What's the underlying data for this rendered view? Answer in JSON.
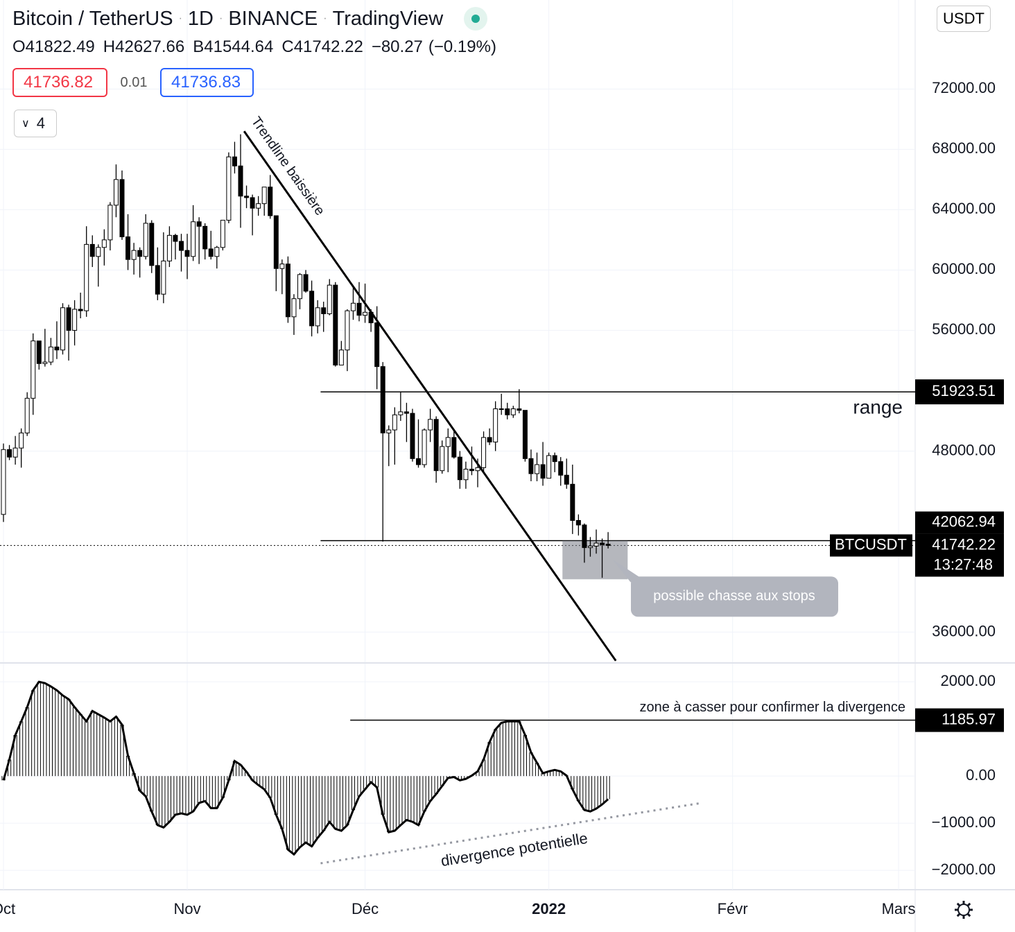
{
  "header": {
    "symbol": "Bitcoin / TetherUS",
    "interval": "1D",
    "exchange": "BINANCE",
    "source": "TradingView",
    "ohlc_labels": [
      "O",
      "H",
      "B",
      "C"
    ],
    "change": "−80.27",
    "change_pct": "(−0.19%)",
    "sell": 41736.82,
    "spread": 0.01,
    "buy": 41736.83,
    "indicators_count": 4,
    "currency": "USDT"
  },
  "chart_data": [
    {
      "type": "candlestick",
      "up_color": "#ffffff",
      "down_color": "#000000",
      "grid": true,
      "x": [
        0,
        1,
        2,
        3,
        4,
        5,
        6,
        7,
        8,
        9,
        10,
        11,
        12,
        13,
        14,
        15,
        16,
        17,
        18,
        19,
        20,
        21,
        22,
        23,
        24,
        25,
        26,
        27,
        28,
        29,
        30,
        31,
        32,
        33,
        34,
        35,
        36,
        37,
        38,
        39,
        40,
        41,
        42,
        43,
        44,
        45,
        46,
        47,
        48,
        49,
        50,
        51,
        52,
        53,
        54,
        55,
        56,
        57,
        58,
        59,
        60,
        61,
        62,
        63,
        64,
        65,
        66,
        67,
        68,
        69,
        70,
        71,
        72,
        73,
        74,
        75,
        76,
        77,
        78,
        79,
        80,
        81,
        82,
        83,
        84,
        85,
        86,
        87,
        88,
        89,
        90,
        91,
        92,
        93,
        94,
        95,
        96,
        97,
        98,
        99,
        100,
        101,
        102
      ],
      "open": [
        43800,
        48100,
        47600,
        48200,
        49200,
        51500,
        55300,
        53800,
        53900,
        54900,
        54700,
        57500,
        56000,
        57400,
        57300,
        61700,
        60900,
        61500,
        62000,
        64300,
        66000,
        62200,
        60700,
        61300,
        60900,
        63100,
        60300,
        58400,
        60600,
        62300,
        61900,
        61300,
        60900,
        63200,
        62900,
        61400,
        60900,
        61500,
        63300,
        67500,
        66900,
        64900,
        64800,
        64100,
        64400,
        65500,
        63600,
        60100,
        60400,
        56900,
        58100,
        59700,
        58600,
        56300,
        57500,
        57100,
        59000,
        53700,
        54700,
        57300,
        57800,
        57000,
        57200,
        56500,
        53600,
        49200,
        49400,
        50400,
        50600,
        50500,
        47500,
        47100,
        49400,
        50100,
        46700,
        48300,
        48900,
        47600,
        46100,
        46800,
        46700,
        46900,
        48900,
        48600,
        50800,
        50800,
        50400,
        50800,
        50700,
        47500,
        46500,
        47100,
        46200,
        47700,
        47300,
        46400,
        45800,
        43400,
        43100,
        41600,
        41700,
        41900,
        41822.49
      ],
      "high": [
        48500,
        48400,
        49000,
        49500,
        51900,
        55800,
        55300,
        56100,
        55500,
        56600,
        57800,
        57700,
        58000,
        58500,
        62900,
        62300,
        61700,
        62700,
        64500,
        67000,
        66600,
        63700,
        61800,
        61500,
        63700,
        63300,
        61500,
        62500,
        62900,
        62400,
        62400,
        62400,
        64300,
        63500,
        63100,
        62600,
        61600,
        63300,
        67800,
        68500,
        69000,
        65600,
        65000,
        64900,
        65500,
        66300,
        63600,
        60700,
        60900,
        58400,
        59800,
        60000,
        59300,
        58000,
        57900,
        59400,
        59200,
        55300,
        57400,
        58900,
        59200,
        59100,
        57400,
        57600,
        53900,
        49700,
        50900,
        51900,
        51200,
        50800,
        50100,
        49500,
        50800,
        50300,
        48700,
        49500,
        49400,
        48000,
        47300,
        48300,
        47500,
        49300,
        49500,
        51300,
        51800,
        51200,
        51000,
        52100,
        50700,
        48100,
        47900,
        48600,
        47900,
        47900,
        47600,
        47500,
        47100,
        43800,
        43200,
        42300,
        42800,
        42200,
        42627.66
      ],
      "low": [
        43300,
        47400,
        47100,
        46900,
        49000,
        50400,
        53400,
        53600,
        53700,
        54100,
        54400,
        54000,
        55000,
        56800,
        56900,
        60200,
        58900,
        60300,
        61300,
        63500,
        62000,
        60000,
        59700,
        59500,
        60700,
        59800,
        58000,
        57800,
        60200,
        60700,
        59900,
        59400,
        60600,
        60400,
        60700,
        60700,
        60100,
        61300,
        63100,
        66400,
        62800,
        64100,
        62300,
        63600,
        63600,
        63400,
        58600,
        58400,
        56500,
        55700,
        57400,
        58500,
        55600,
        55800,
        55900,
        57000,
        53600,
        53700,
        53300,
        56700,
        56600,
        56500,
        55900,
        52100,
        42000,
        47000,
        47100,
        50000,
        48600,
        47300,
        46900,
        46900,
        48600,
        45900,
        46500,
        46600,
        47500,
        45500,
        45500,
        46400,
        45600,
        46600,
        48400,
        48000,
        50400,
        50100,
        50200,
        50500,
        47300,
        46000,
        46000,
        45700,
        46200,
        46600,
        45700,
        45500,
        42500,
        42400,
        40600,
        41000,
        41200,
        39600,
        41544.64
      ],
      "close": [
        48100,
        47600,
        48200,
        49200,
        51500,
        55300,
        53800,
        53900,
        54900,
        54700,
        57500,
        56000,
        57400,
        57300,
        61700,
        60900,
        61500,
        62000,
        64300,
        66000,
        62200,
        60700,
        61300,
        60900,
        63100,
        60300,
        58400,
        60600,
        62300,
        61900,
        61300,
        60900,
        63200,
        62900,
        61400,
        60900,
        61500,
        63300,
        67500,
        66900,
        64900,
        64800,
        64100,
        64400,
        65500,
        63600,
        60100,
        60400,
        56900,
        58100,
        59700,
        58600,
        56300,
        57500,
        57100,
        59000,
        53700,
        54700,
        57300,
        57800,
        57000,
        57200,
        56500,
        53600,
        49200,
        49400,
        50400,
        50600,
        50500,
        47500,
        47100,
        49400,
        50100,
        46700,
        48300,
        48900,
        47600,
        46100,
        46800,
        46700,
        46900,
        48900,
        48600,
        50800,
        50800,
        50400,
        50800,
        50700,
        47500,
        46500,
        47100,
        46200,
        47700,
        47300,
        46400,
        45800,
        43400,
        43100,
        41600,
        41700,
        41900,
        41800,
        41742.22
      ],
      "xlim": [
        -0.585,
        153.8
      ],
      "xticks": [
        {
          "value": 0,
          "label": "Oct"
        },
        {
          "value": 31,
          "label": "Nov"
        },
        {
          "value": 61,
          "label": "Déc"
        },
        {
          "value": 92,
          "label": "2022"
        },
        {
          "value": 123,
          "label": "Févr"
        },
        {
          "value": 151,
          "label": "Mars"
        }
      ],
      "ylim": [
        34000,
        77900
      ],
      "yticks": [
        {
          "value": 36000,
          "label": "36000.00"
        },
        {
          "value": 48000,
          "label": "48000.00"
        },
        {
          "value": 56000,
          "label": "56000.00"
        },
        {
          "value": 60000,
          "label": "60000.00"
        },
        {
          "value": 64000,
          "label": "64000.00"
        },
        {
          "value": 68000,
          "label": "68000.00"
        },
        {
          "value": 72000,
          "label": "72000.00"
        }
      ],
      "range_high": {
        "value": 51923.51,
        "x_start": 53.5,
        "label": "range"
      },
      "range_low": {
        "value": 42062.94,
        "x_start": 53.5
      },
      "symbol_label": "BTCUSDT",
      "countdown": "13:27:48",
      "trendline": {
        "x": [
          40.6,
          103.3
        ],
        "y": [
          69200,
          34100
        ],
        "label": "Trendline baissière"
      },
      "stop_zone": {
        "x": [
          94.3,
          105.3
        ],
        "y": [
          39500,
          42060
        ],
        "label": "possible chasse aux stops"
      }
    },
    {
      "type": "histogram",
      "color": "#000000",
      "x": [
        0,
        1,
        2,
        3,
        4,
        5,
        6,
        7,
        8,
        9,
        10,
        11,
        12,
        13,
        14,
        15,
        16,
        17,
        18,
        19,
        20,
        21,
        22,
        23,
        24,
        25,
        26,
        27,
        28,
        29,
        30,
        31,
        32,
        33,
        34,
        35,
        36,
        37,
        38,
        39,
        40,
        41,
        42,
        43,
        44,
        45,
        46,
        47,
        48,
        49,
        50,
        51,
        52,
        53,
        54,
        55,
        56,
        57,
        58,
        59,
        60,
        61,
        62,
        63,
        64,
        65,
        66,
        67,
        68,
        69,
        70,
        71,
        72,
        73,
        74,
        75,
        76,
        77,
        78,
        79,
        80,
        81,
        82,
        83,
        84,
        85,
        86,
        87,
        88,
        89,
        90,
        91,
        92,
        93,
        94,
        95,
        96,
        97,
        98,
        99,
        100,
        101,
        102
      ],
      "values": [
        -90,
        350,
        870,
        1160,
        1460,
        1820,
        2000,
        1970,
        1900,
        1820,
        1710,
        1630,
        1460,
        1310,
        1160,
        1380,
        1310,
        1240,
        1160,
        1260,
        1090,
        430,
        60,
        -310,
        -430,
        -750,
        -1040,
        -1090,
        -970,
        -820,
        -790,
        -820,
        -750,
        -570,
        -530,
        -680,
        -680,
        -460,
        -90,
        320,
        240,
        90,
        -90,
        -190,
        -280,
        -460,
        -820,
        -1120,
        -1560,
        -1660,
        -1510,
        -1410,
        -1490,
        -1310,
        -1160,
        -970,
        -1120,
        -1160,
        -1040,
        -720,
        -430,
        -280,
        -130,
        -240,
        -820,
        -1190,
        -1160,
        -1040,
        -930,
        -970,
        -1040,
        -750,
        -530,
        -380,
        -210,
        -40,
        -20,
        -90,
        -60,
        10,
        100,
        350,
        720,
        990,
        1130,
        1160,
        1160,
        1160,
        870,
        500,
        280,
        60,
        100,
        130,
        100,
        10,
        -280,
        -530,
        -720,
        -750,
        -690,
        -600,
        -490
      ],
      "ylim": [
        -2410,
        2385
      ],
      "yticks": [
        {
          "value": -2000,
          "label": "−2000.00"
        },
        {
          "value": -1000,
          "label": "−1000.00"
        },
        {
          "value": 0,
          "label": "0.00"
        },
        {
          "value": 2000,
          "label": "2000.00"
        }
      ],
      "level": {
        "value": 1185.97,
        "x_start": 58.5,
        "label": "zone à casser pour confirmer la divergence"
      },
      "divergence": {
        "x": [
          53.5,
          117.8
        ],
        "y": [
          -1850,
          -570
        ],
        "label": "divergence potentielle"
      }
    }
  ]
}
